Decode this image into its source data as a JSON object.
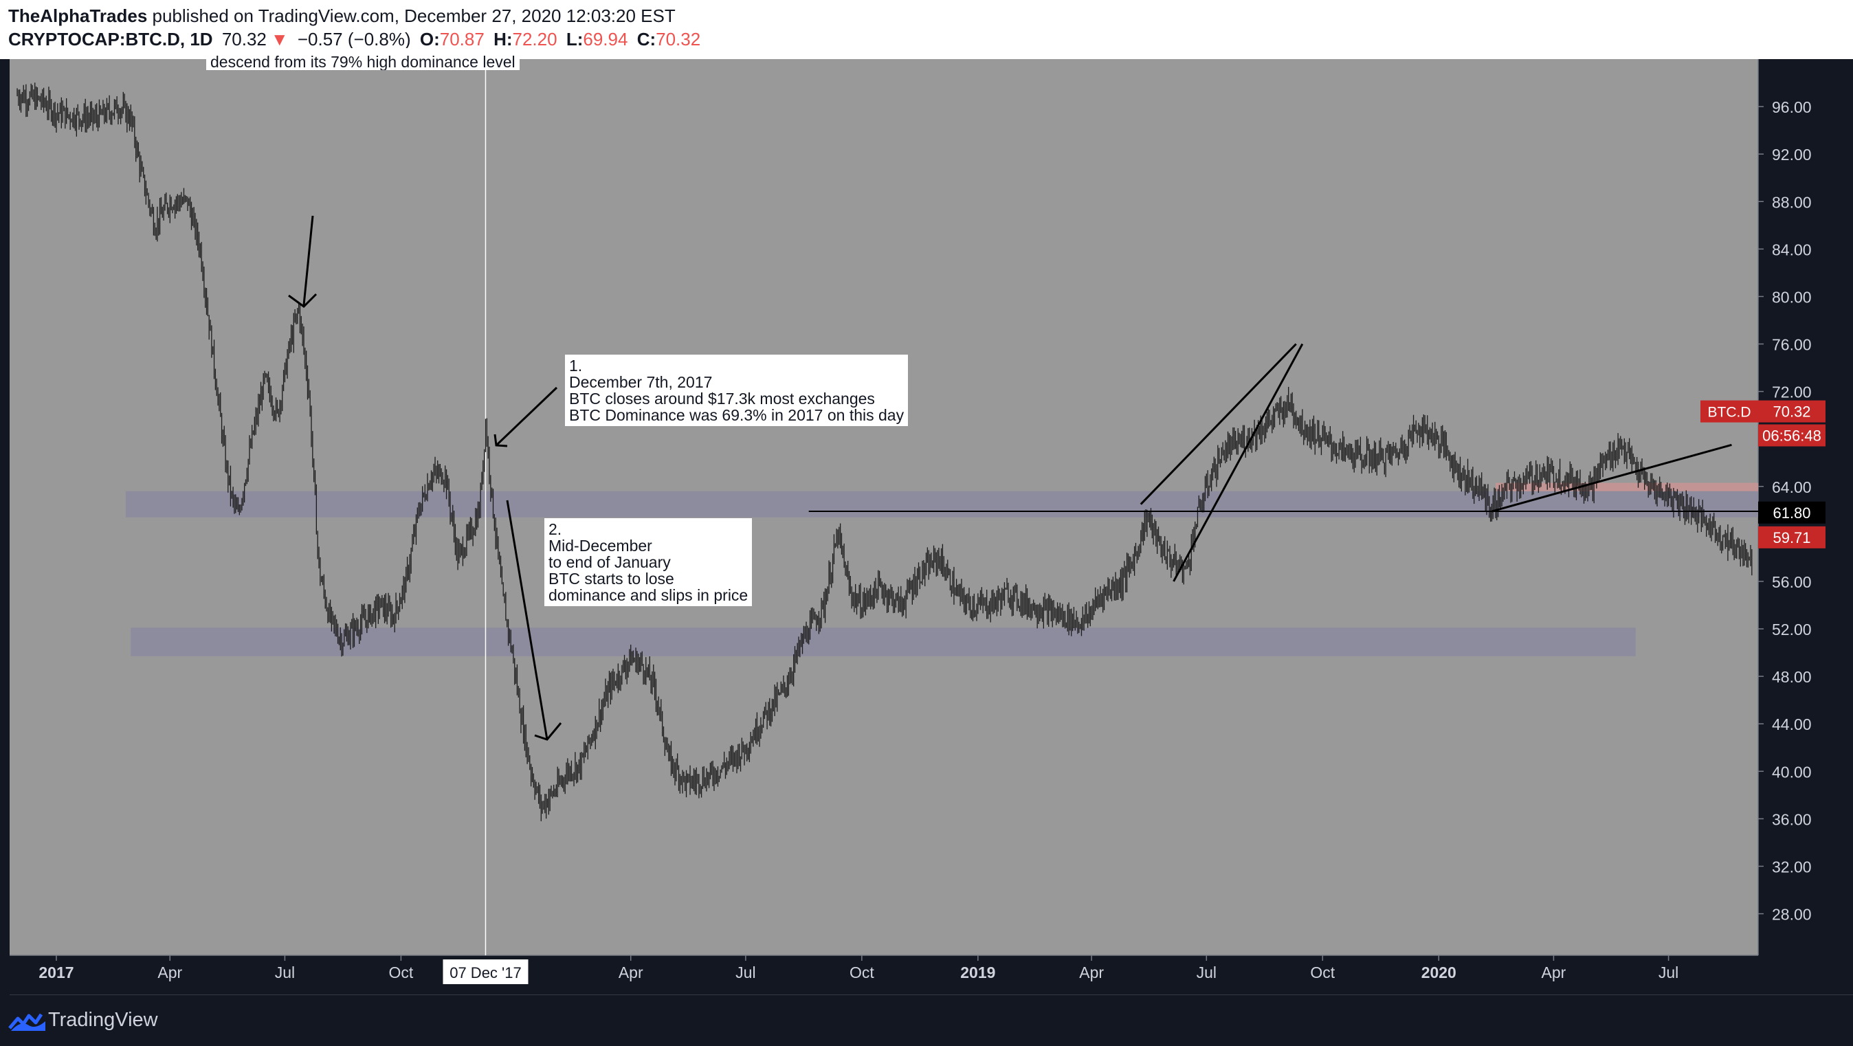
{
  "header": {
    "author": "TheAlphaTrades",
    "published": "published on TradingView.com, December 27, 2020 12:03:20 EST",
    "symbol": "CRYPTOCAP:BTC.D, 1D",
    "last": "70.32",
    "arrow": "▼",
    "change": "−0.57 (−0.8%)",
    "o_label": "O:",
    "o_value": "70.87",
    "h_label": "H:",
    "h_value": "72.20",
    "l_label": "L:",
    "l_value": "69.94",
    "c_label": "C:",
    "c_value": "70.32"
  },
  "footer": {
    "brand": "TradingView"
  },
  "colors": {
    "background": "#131722",
    "plot": "#999999",
    "candle": "#1a1a1a",
    "zone": "#8c8b9e",
    "red_zone": "#c79493",
    "label_red": "#c62828",
    "label_black": "#000000"
  },
  "annotations": {
    "top_cut": "descend from its 79% high dominance level",
    "note1": "1.\nDecember 7th, 2017\nBTC closes around $17.3k most exchanges\nBTC Dominance was 69.3% in 2017 on this day",
    "note2": "2.\nMid-December\nto end of January\nBTC starts to lose\ndominance and slips in price",
    "crosshair_date": "07 Dec '17"
  },
  "chart_data": {
    "type": "candlestick",
    "title": "CRYPTOCAP:BTC.D, 1D",
    "xlabel": "",
    "ylabel": "",
    "ylim": [
      24.5,
      100
    ],
    "y_ticks": [
      "96.00",
      "92.00",
      "88.00",
      "84.00",
      "80.00",
      "76.00",
      "72.00",
      "68.00",
      "64.00",
      "60.00",
      "56.00",
      "52.00",
      "48.00",
      "44.00",
      "40.00",
      "36.00",
      "32.00",
      "28.00"
    ],
    "x_ticks": [
      {
        "label": "2017",
        "date": "2017-01-01",
        "bold": true
      },
      {
        "label": "Apr",
        "date": "2017-04-01"
      },
      {
        "label": "Jul",
        "date": "2017-07-01"
      },
      {
        "label": "Oct",
        "date": "2017-10-01"
      },
      {
        "label": "Apr",
        "date": "2018-04-01"
      },
      {
        "label": "Jul",
        "date": "2018-07-01"
      },
      {
        "label": "Oct",
        "date": "2018-10-01"
      },
      {
        "label": "2019",
        "date": "2019-01-01",
        "bold": true
      },
      {
        "label": "Apr",
        "date": "2019-04-01"
      },
      {
        "label": "Jul",
        "date": "2019-07-01"
      },
      {
        "label": "Oct",
        "date": "2019-10-01"
      },
      {
        "label": "2020",
        "date": "2020-01-01",
        "bold": true
      },
      {
        "label": "Apr",
        "date": "2020-04-01"
      },
      {
        "label": "Jul",
        "date": "2020-07-01"
      }
    ],
    "x_range": [
      "2016-11-25",
      "2020-09-10"
    ],
    "series": [
      {
        "values": [
          [
            "2016-12-01",
            97.0
          ],
          [
            "2016-12-20",
            96.5
          ],
          [
            "2017-01-01",
            95.5
          ],
          [
            "2017-01-15",
            95.2
          ],
          [
            "2017-02-01",
            95.0
          ],
          [
            "2017-02-20",
            96.0
          ],
          [
            "2017-03-01",
            95.0
          ],
          [
            "2017-03-10",
            90.0
          ],
          [
            "2017-03-20",
            86.0
          ],
          [
            "2017-04-01",
            88.0
          ],
          [
            "2017-04-15",
            88.0
          ],
          [
            "2017-04-25",
            84.0
          ],
          [
            "2017-05-05",
            75.0
          ],
          [
            "2017-05-15",
            66.0
          ],
          [
            "2017-05-20",
            63.0
          ],
          [
            "2017-05-25",
            61.5
          ],
          [
            "2017-06-05",
            68.0
          ],
          [
            "2017-06-15",
            73.0
          ],
          [
            "2017-06-25",
            70.0
          ],
          [
            "2017-07-05",
            76.0
          ],
          [
            "2017-07-12",
            79.0
          ],
          [
            "2017-07-20",
            72.0
          ],
          [
            "2017-07-28",
            57.0
          ],
          [
            "2017-08-05",
            53.0
          ],
          [
            "2017-08-15",
            51.0
          ],
          [
            "2017-08-25",
            52.0
          ],
          [
            "2017-09-05",
            53.0
          ],
          [
            "2017-09-15",
            54.0
          ],
          [
            "2017-09-25",
            53.0
          ],
          [
            "2017-10-05",
            56.0
          ],
          [
            "2017-10-15",
            62.0
          ],
          [
            "2017-10-25",
            65.0
          ],
          [
            "2017-11-05",
            65.0
          ],
          [
            "2017-11-15",
            58.0
          ],
          [
            "2017-11-25",
            60.0
          ],
          [
            "2017-12-02",
            62.0
          ],
          [
            "2017-12-07",
            69.3
          ],
          [
            "2017-12-12",
            63.0
          ],
          [
            "2017-12-20",
            55.0
          ],
          [
            "2017-12-28",
            50.0
          ],
          [
            "2018-01-05",
            44.0
          ],
          [
            "2018-01-12",
            40.0
          ],
          [
            "2018-01-20",
            37.0
          ],
          [
            "2018-02-01",
            38.5
          ],
          [
            "2018-02-10",
            40.0
          ],
          [
            "2018-02-20",
            40.5
          ],
          [
            "2018-03-01",
            43.0
          ],
          [
            "2018-03-15",
            47.0
          ],
          [
            "2018-04-01",
            49.5
          ],
          [
            "2018-04-10",
            49.0
          ],
          [
            "2018-04-20",
            47.0
          ],
          [
            "2018-05-01",
            41.0
          ],
          [
            "2018-05-15",
            39.0
          ],
          [
            "2018-06-01",
            39.5
          ],
          [
            "2018-06-15",
            40.5
          ],
          [
            "2018-07-01",
            42.0
          ],
          [
            "2018-07-15",
            44.5
          ],
          [
            "2018-08-01",
            47.0
          ],
          [
            "2018-08-15",
            51.0
          ],
          [
            "2018-09-01",
            54.0
          ],
          [
            "2018-09-12",
            60.0
          ],
          [
            "2018-09-22",
            55.0
          ],
          [
            "2018-10-01",
            54.0
          ],
          [
            "2018-10-15",
            55.5
          ],
          [
            "2018-11-01",
            54.0
          ],
          [
            "2018-11-15",
            56.5
          ],
          [
            "2018-12-01",
            58.0
          ],
          [
            "2018-12-15",
            55.0
          ],
          [
            "2018-12-25",
            54.0
          ],
          [
            "2019-01-10",
            54.0
          ],
          [
            "2019-01-25",
            55.0
          ],
          [
            "2019-02-10",
            54.0
          ],
          [
            "2019-02-25",
            53.5
          ],
          [
            "2019-03-10",
            53.0
          ],
          [
            "2019-03-25",
            52.5
          ],
          [
            "2019-04-10",
            55.0
          ],
          [
            "2019-04-25",
            56.0
          ],
          [
            "2019-05-05",
            58.0
          ],
          [
            "2019-05-15",
            61.5
          ],
          [
            "2019-05-25",
            59.0
          ],
          [
            "2019-06-05",
            57.5
          ],
          [
            "2019-06-15",
            57.0
          ],
          [
            "2019-06-25",
            62.0
          ],
          [
            "2019-07-05",
            65.0
          ],
          [
            "2019-07-15",
            67.0
          ],
          [
            "2019-08-01",
            68.0
          ],
          [
            "2019-08-15",
            69.0
          ],
          [
            "2019-08-25",
            70.0
          ],
          [
            "2019-09-05",
            71.0
          ],
          [
            "2019-09-15",
            69.0
          ],
          [
            "2019-10-01",
            68.0
          ],
          [
            "2019-10-15",
            67.0
          ],
          [
            "2019-11-01",
            66.5
          ],
          [
            "2019-11-20",
            66.5
          ],
          [
            "2019-12-01",
            67.0
          ],
          [
            "2019-12-15",
            69.0
          ],
          [
            "2019-12-25",
            68.5
          ],
          [
            "2020-01-05",
            67.5
          ],
          [
            "2020-01-15",
            65.5
          ],
          [
            "2020-01-25",
            64.5
          ],
          [
            "2020-02-05",
            63.5
          ],
          [
            "2020-02-12",
            62.0
          ],
          [
            "2020-02-25",
            64.0
          ],
          [
            "2020-03-10",
            64.5
          ],
          [
            "2020-03-20",
            65.0
          ],
          [
            "2020-04-01",
            65.0
          ],
          [
            "2020-04-15",
            64.5
          ],
          [
            "2020-05-01",
            64.0
          ],
          [
            "2020-05-10",
            66.0
          ],
          [
            "2020-05-25",
            67.5
          ],
          [
            "2020-06-05",
            65.5
          ],
          [
            "2020-06-15",
            64.0
          ],
          [
            "2020-06-25",
            63.5
          ],
          [
            "2020-07-05",
            63.0
          ],
          [
            "2020-07-20",
            62.0
          ],
          [
            "2020-07-30",
            61.0
          ],
          [
            "2020-08-10",
            60.0
          ],
          [
            "2020-08-20",
            59.0
          ],
          [
            "2020-08-30",
            58.5
          ],
          [
            "2020-09-05",
            57.8
          ]
        ]
      }
    ],
    "price_labels": [
      {
        "text": "BTC.D",
        "value": "70.32",
        "price": 70.32
      },
      {
        "text": "06:56:48",
        "price": 68.3
      },
      {
        "value": "61.80",
        "price": 61.8
      },
      {
        "value": "59.71",
        "price": 59.71
      }
    ],
    "horizontal_zones": [
      {
        "from_date": "2017-02-25",
        "to_date": "2020-09-10",
        "low": 61.4,
        "high": 63.6
      },
      {
        "from_date": "2017-03-01",
        "to_date": "2020-06-05",
        "low": 49.7,
        "high": 52.1
      },
      {
        "from_date": "2020-02-15",
        "to_date": "2020-09-10",
        "low": 63.6,
        "high": 64.3,
        "style": "red"
      }
    ],
    "horizontal_lines": [
      {
        "from_date": "2018-08-20",
        "to_date": "2020-09-10",
        "price": 61.9
      }
    ],
    "trend_lines": [
      [
        [
          "2019-05-10",
          62.5
        ],
        [
          "2019-09-10",
          76.0
        ]
      ],
      [
        [
          "2019-06-05",
          56.0
        ],
        [
          "2019-09-15",
          76.0
        ]
      ],
      [
        [
          "2020-02-12",
          61.9
        ],
        [
          "2020-08-20",
          67.5
        ]
      ]
    ],
    "crosshair": {
      "date": "2017-12-07"
    }
  }
}
